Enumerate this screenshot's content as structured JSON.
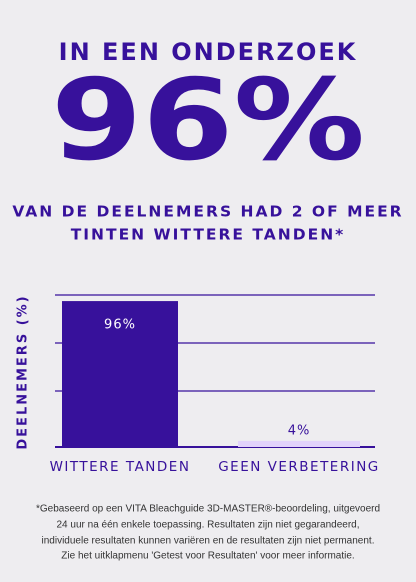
{
  "header": {
    "title": "IN EEN ONDERZOEK",
    "headline": "96%",
    "subtitle": [
      "VAN DE DEELNEMERS HAD 2 OF MEER",
      "TINTEN WITTERE TANDEN*"
    ]
  },
  "chart_data": {
    "type": "bar",
    "y_label": "DEELNEMERS (%)",
    "categories": [
      "WITTERE TANDEN",
      "GEEN VERBETERING"
    ],
    "values": [
      96,
      4
    ],
    "value_labels": [
      "96%",
      "4%"
    ],
    "colors": [
      "#37119b",
      "#e2d3fb"
    ],
    "ylim": [
      0,
      100
    ]
  },
  "footnote": [
    "*Gebaseerd op een VITA Bleachguide 3D-MASTER®-beoordeling, uitgevoerd",
    "24 uur na één enkele toepassing. Resultaten zijn niet gegarandeerd,",
    "individuele resultaten kunnen variëren en de resultaten zijn niet permanent.",
    "Zie het uitklapmenu 'Getest voor Resultaten' voor meer informatie."
  ]
}
